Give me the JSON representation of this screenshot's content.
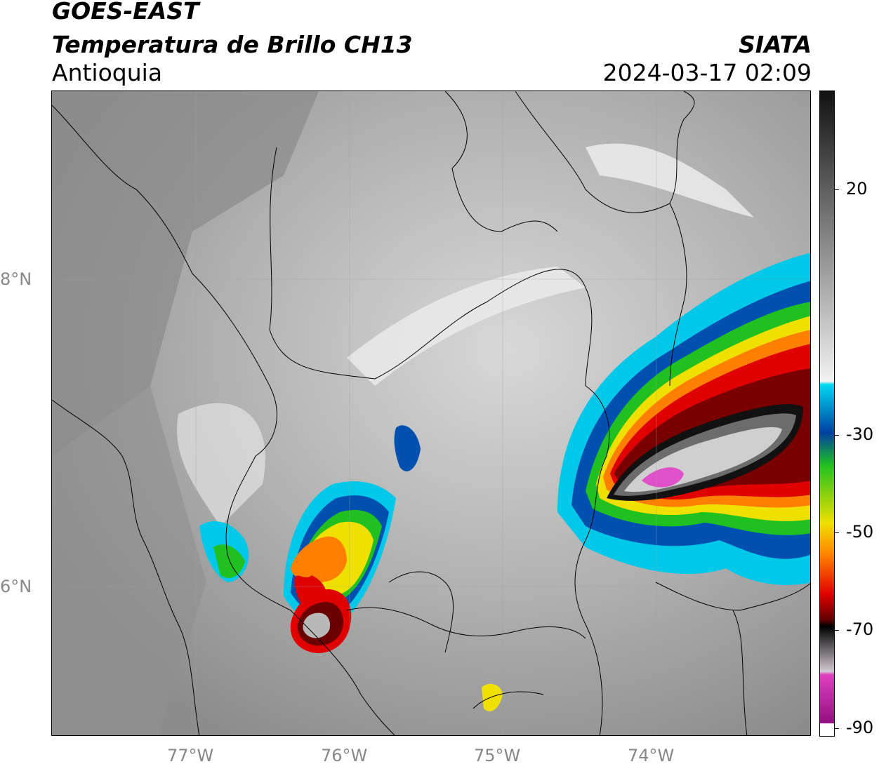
{
  "header": {
    "satellite": "GOES-EAST",
    "product": "Temperatura de Brillo CH13",
    "region": "Antioquia",
    "agency": "SIATA",
    "datetime": "2024-03-17 02:09"
  },
  "axes": {
    "lat_labels": [
      "8°N",
      "6°N"
    ],
    "lon_labels": [
      "77°W",
      "76°W",
      "75°W",
      "74°W"
    ]
  },
  "colorbar": {
    "ticks": [
      "20",
      "-30",
      "-50",
      "-70",
      "-90"
    ],
    "colors": {
      "warm_top": "#111111",
      "gray_mid": "#888888",
      "white": "#f2f2f2",
      "cyan": "#00d8f0",
      "blue": "#0040a0",
      "green": "#20c020",
      "yellow": "#f0f000",
      "orange": "#ff8000",
      "red": "#e00000",
      "dark_red": "#600000",
      "black": "#000000",
      "light_gray": "#d0c8d0",
      "magenta": "#e040c0",
      "purple": "#901080"
    }
  }
}
